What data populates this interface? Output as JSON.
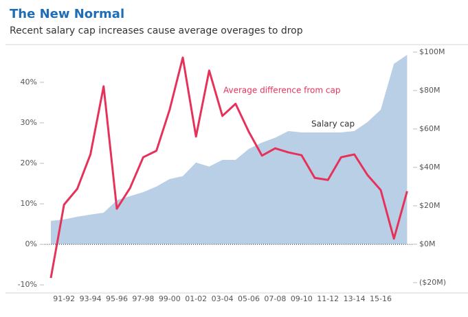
{
  "chart_data": {
    "type": "line-area",
    "title": "The New Normal",
    "subtitle": "Recent salary cap increases cause average overages to drop",
    "categories": [
      null,
      "91-92",
      null,
      "93-94",
      null,
      "95-96",
      null,
      "97-98",
      null,
      "99-00",
      null,
      "01-02",
      null,
      "03-04",
      null,
      "05-06",
      null,
      "07-08",
      null,
      "09-10",
      null,
      "11-12",
      null,
      "13-14",
      null,
      "15-16",
      null,
      null
    ],
    "series": [
      {
        "name": "Salary cap",
        "type": "area",
        "axis": "y2",
        "color": "#b8cfe5",
        "values": [
          12.1,
          12.9,
          14.3,
          15.4,
          16.4,
          22.9,
          25.0,
          27.1,
          30.0,
          33.9,
          35.4,
          42.5,
          40.4,
          43.9,
          43.9,
          49.6,
          52.9,
          55.4,
          58.9,
          58.2,
          58.2,
          58.2,
          58.2,
          58.9,
          63.6,
          70.0,
          93.9,
          98.6
        ]
      },
      {
        "name": "Average difference from cap",
        "type": "line",
        "axis": "y",
        "color": "#e6325a",
        "values": [
          -8.3,
          9.8,
          13.7,
          22.2,
          39.0,
          8.8,
          13.9,
          21.5,
          23.1,
          33.2,
          46.1,
          26.6,
          42.9,
          31.7,
          34.7,
          27.8,
          21.9,
          23.7,
          22.7,
          22.0,
          16.4,
          15.9,
          21.5,
          22.2,
          17.1,
          13.4,
          1.4,
          13.1
        ]
      }
    ],
    "ylim": [
      -12,
      49.3
    ],
    "yticks": [
      {
        "value": -10,
        "label": "-10%"
      },
      {
        "value": 0,
        "label": "0%"
      },
      {
        "value": 10,
        "label": "10%"
      },
      {
        "value": 20,
        "label": "20%"
      },
      {
        "value": 30,
        "label": "30%"
      },
      {
        "value": 40,
        "label": "40%"
      }
    ],
    "y2lim": [
      -25.4,
      103.9
    ],
    "y2ticks": [
      {
        "value": -20,
        "label": "($20M)"
      },
      {
        "value": 0,
        "label": "$0M"
      },
      {
        "value": 20,
        "label": "$20M"
      },
      {
        "value": 40,
        "label": "$40M"
      },
      {
        "value": 60,
        "label": "$60M"
      },
      {
        "value": 80,
        "label": "$80M"
      },
      {
        "value": 100,
        "label": "$100M"
      }
    ],
    "grid": false
  }
}
